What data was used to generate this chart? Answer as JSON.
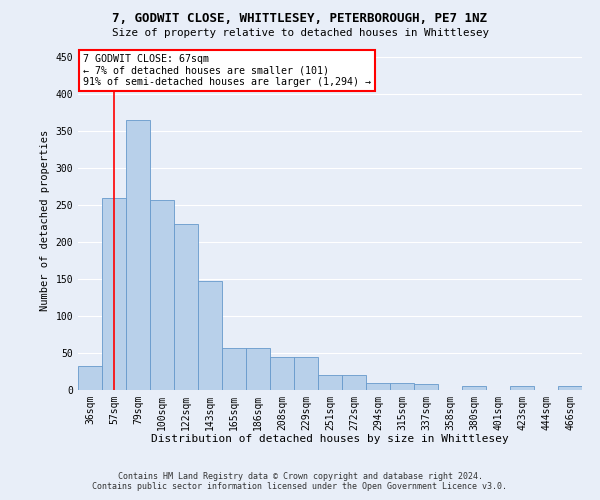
{
  "title1": "7, GODWIT CLOSE, WHITTLESEY, PETERBOROUGH, PE7 1NZ",
  "title2": "Size of property relative to detached houses in Whittlesey",
  "xlabel": "Distribution of detached houses by size in Whittlesey",
  "ylabel": "Number of detached properties",
  "categories": [
    "36sqm",
    "57sqm",
    "79sqm",
    "100sqm",
    "122sqm",
    "143sqm",
    "165sqm",
    "186sqm",
    "208sqm",
    "229sqm",
    "251sqm",
    "272sqm",
    "294sqm",
    "315sqm",
    "337sqm",
    "358sqm",
    "380sqm",
    "401sqm",
    "423sqm",
    "444sqm",
    "466sqm"
  ],
  "values": [
    32,
    260,
    365,
    257,
    225,
    148,
    57,
    57,
    45,
    45,
    20,
    20,
    10,
    10,
    8,
    0,
    6,
    0,
    5,
    0,
    5
  ],
  "bar_color": "#b8d0ea",
  "bar_edge_color": "#6699cc",
  "red_line_x": 1.0,
  "annotation_text": "7 GODWIT CLOSE: 67sqm\n← 7% of detached houses are smaller (101)\n91% of semi-detached houses are larger (1,294) →",
  "footer1": "Contains HM Land Registry data © Crown copyright and database right 2024.",
  "footer2": "Contains public sector information licensed under the Open Government Licence v3.0.",
  "bg_color": "#e8eef8",
  "plot_bg_color": "#e8eef8",
  "ylim": [
    0,
    460
  ],
  "yticks": [
    0,
    50,
    100,
    150,
    200,
    250,
    300,
    350,
    400,
    450
  ]
}
